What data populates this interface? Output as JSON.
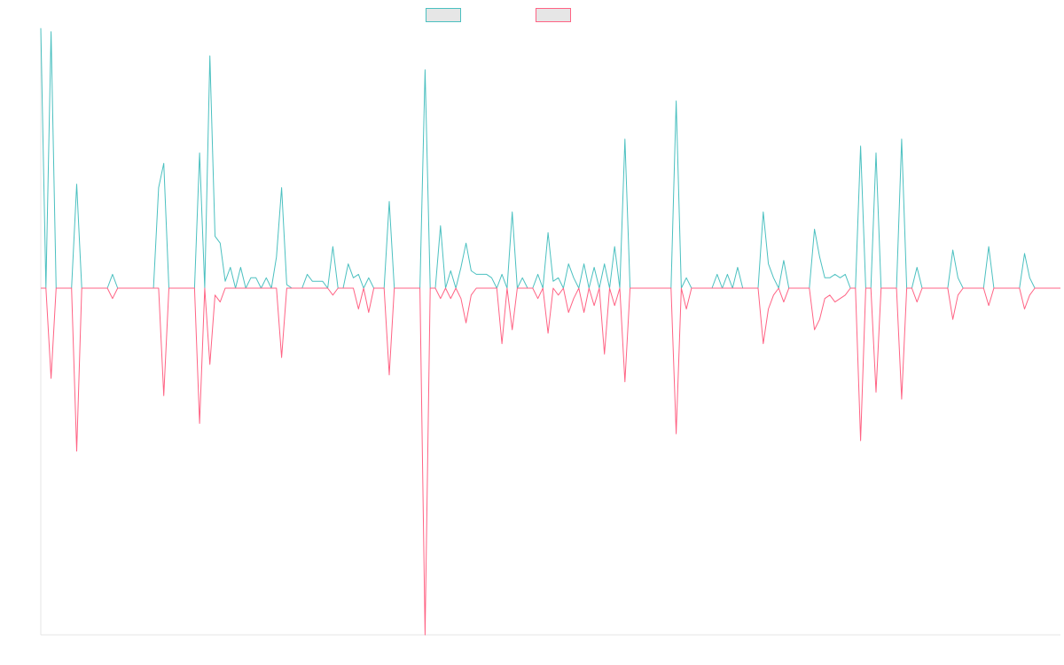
{
  "colors": {
    "series_a": "#4bc0c0",
    "series_b": "#ff6384",
    "axis": "#e6e6e6",
    "legend_fill": "#e6e6e6"
  },
  "chart_data": {
    "type": "line",
    "title": "",
    "xlabel": "",
    "ylabel": "",
    "ylim": [
      -1,
      1
    ],
    "grid": false,
    "legend": "top-center",
    "x_count": 200,
    "series": [
      {
        "color": "#4bc0c0",
        "events": [
          [
            0,
            0.75
          ],
          [
            2,
            0.74
          ],
          [
            7,
            0.3
          ],
          [
            14,
            0.04
          ],
          [
            23,
            0.29
          ],
          [
            24,
            0.36
          ],
          [
            31,
            0.39
          ],
          [
            33,
            0.67
          ],
          [
            34,
            0.15
          ],
          [
            35,
            0.13
          ],
          [
            36,
            0.02
          ],
          [
            37,
            0.06
          ],
          [
            39,
            0.06
          ],
          [
            41,
            0.03
          ],
          [
            42,
            0.03
          ],
          [
            44,
            0.03
          ],
          [
            46,
            0.09
          ],
          [
            47,
            0.29
          ],
          [
            48,
            0.01
          ],
          [
            52,
            0.04
          ],
          [
            53,
            0.02
          ],
          [
            54,
            0.02
          ],
          [
            55,
            0.02
          ],
          [
            57,
            0.12
          ],
          [
            60,
            0.07
          ],
          [
            61,
            0.03
          ],
          [
            62,
            0.04
          ],
          [
            64,
            0.03
          ],
          [
            68,
            0.25
          ],
          [
            75,
            0.63
          ],
          [
            78,
            0.18
          ],
          [
            80,
            0.05
          ],
          [
            82,
            0.06
          ],
          [
            83,
            0.13
          ],
          [
            84,
            0.05
          ],
          [
            85,
            0.04
          ],
          [
            86,
            0.04
          ],
          [
            87,
            0.04
          ],
          [
            88,
            0.03
          ],
          [
            90,
            0.04
          ],
          [
            92,
            0.22
          ],
          [
            94,
            0.03
          ],
          [
            97,
            0.04
          ],
          [
            99,
            0.16
          ],
          [
            100,
            0.02
          ],
          [
            101,
            0.03
          ],
          [
            103,
            0.07
          ],
          [
            104,
            0.03
          ],
          [
            106,
            0.07
          ],
          [
            108,
            0.06
          ],
          [
            110,
            0.07
          ],
          [
            112,
            0.12
          ],
          [
            114,
            0.43
          ],
          [
            124,
            0.54
          ],
          [
            126,
            0.03
          ],
          [
            132,
            0.04
          ],
          [
            134,
            0.04
          ],
          [
            136,
            0.06
          ],
          [
            141,
            0.22
          ],
          [
            142,
            0.07
          ],
          [
            143,
            0.03
          ],
          [
            145,
            0.08
          ],
          [
            151,
            0.17
          ],
          [
            152,
            0.09
          ],
          [
            153,
            0.03
          ],
          [
            154,
            0.03
          ],
          [
            155,
            0.04
          ],
          [
            156,
            0.03
          ],
          [
            157,
            0.04
          ],
          [
            160,
            0.41
          ],
          [
            163,
            0.39
          ],
          [
            168,
            0.43
          ],
          [
            171,
            0.06
          ],
          [
            178,
            0.11
          ],
          [
            179,
            0.03
          ],
          [
            185,
            0.12
          ],
          [
            192,
            0.1
          ],
          [
            193,
            0.03
          ]
        ]
      },
      {
        "color": "#ff6384",
        "events": [
          [
            2,
            -0.26
          ],
          [
            7,
            -0.47
          ],
          [
            14,
            -0.03
          ],
          [
            24,
            -0.31
          ],
          [
            31,
            -0.39
          ],
          [
            33,
            -0.22
          ],
          [
            34,
            -0.02
          ],
          [
            35,
            -0.04
          ],
          [
            47,
            -0.2
          ],
          [
            57,
            -0.02
          ],
          [
            62,
            -0.06
          ],
          [
            64,
            -0.07
          ],
          [
            68,
            -0.25
          ],
          [
            75,
            -1.0
          ],
          [
            78,
            -0.03
          ],
          [
            80,
            -0.03
          ],
          [
            82,
            -0.03
          ],
          [
            83,
            -0.1
          ],
          [
            84,
            -0.02
          ],
          [
            90,
            -0.16
          ],
          [
            92,
            -0.12
          ],
          [
            97,
            -0.03
          ],
          [
            99,
            -0.13
          ],
          [
            101,
            -0.02
          ],
          [
            103,
            -0.07
          ],
          [
            104,
            -0.03
          ],
          [
            106,
            -0.07
          ],
          [
            108,
            -0.05
          ],
          [
            110,
            -0.19
          ],
          [
            112,
            -0.05
          ],
          [
            114,
            -0.27
          ],
          [
            124,
            -0.42
          ],
          [
            126,
            -0.06
          ],
          [
            141,
            -0.16
          ],
          [
            142,
            -0.06
          ],
          [
            143,
            -0.02
          ],
          [
            145,
            -0.04
          ],
          [
            151,
            -0.12
          ],
          [
            152,
            -0.09
          ],
          [
            153,
            -0.03
          ],
          [
            154,
            -0.02
          ],
          [
            155,
            -0.04
          ],
          [
            156,
            -0.03
          ],
          [
            157,
            -0.02
          ],
          [
            160,
            -0.44
          ],
          [
            163,
            -0.3
          ],
          [
            168,
            -0.32
          ],
          [
            171,
            -0.04
          ],
          [
            178,
            -0.09
          ],
          [
            179,
            -0.02
          ],
          [
            185,
            -0.05
          ],
          [
            192,
            -0.06
          ],
          [
            193,
            -0.02
          ]
        ]
      }
    ]
  }
}
